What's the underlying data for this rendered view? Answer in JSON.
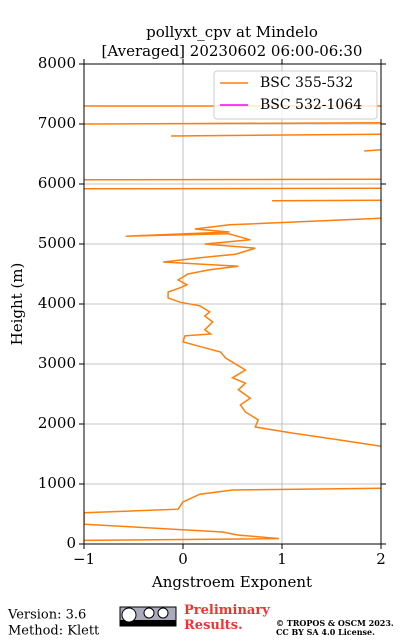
{
  "chart_data": {
    "type": "line",
    "title": "pollyxt_cpv at Mindelo",
    "subtitle": "[Averaged] 20230602 06:00-06:30",
    "x_label": "Angstroem Exponent",
    "y_label": "Height (m)",
    "xlim": [
      -1,
      2
    ],
    "ylim": [
      0,
      8000
    ],
    "xticks": [
      {
        "value": -1,
        "label": "−1"
      },
      0,
      1,
      2
    ],
    "yticks": [
      0,
      1000,
      2000,
      3000,
      4000,
      5000,
      6000,
      7000,
      8000
    ],
    "grid": true,
    "legend": "upper right",
    "series": [
      {
        "name": "BSC 355-532",
        "color": "#ff7f0e",
        "x": [
          -1,
          0.97,
          0.55,
          0.4,
          -1,
          -1,
          -0.05,
          0,
          0.17,
          0.5,
          2,
          null,
          2,
          1.6,
          1.1,
          0.73,
          0.76,
          0.63,
          0.58,
          0.68,
          0.56,
          0.63,
          0.5,
          0.63,
          0.43,
          0.38,
          0.22,
          0,
          0.02,
          0.28,
          0.22,
          0.3,
          0.22,
          0.27,
          0.17,
          -0.03,
          -0.15,
          -0.15,
          -0.03,
          0.04,
          -0.05,
          0.05,
          0.27,
          0.56,
          -0.2,
          0.22,
          0.53,
          0.73,
          0.22,
          0.68,
          0.46,
          -0.58,
          0.47,
          0.12,
          0.47,
          1.18,
          2,
          null,
          0.9,
          2,
          null,
          -1,
          2,
          null,
          -1,
          2,
          null,
          1.83,
          2,
          null,
          -0.12,
          2,
          null,
          -1,
          2,
          null,
          -1,
          2
        ],
        "values": [
          60,
          90,
          150,
          200,
          330,
          520,
          580,
          700,
          830,
          900,
          930,
          null,
          1630,
          1730,
          1850,
          1950,
          2070,
          2200,
          2320,
          2430,
          2570,
          2680,
          2770,
          2900,
          3100,
          3200,
          3270,
          3370,
          3470,
          3500,
          3570,
          3700,
          3800,
          3870,
          3970,
          4030,
          4100,
          4200,
          4270,
          4320,
          4400,
          4500,
          4570,
          4630,
          4700,
          4780,
          4830,
          4930,
          5000,
          5070,
          5170,
          5130,
          5200,
          5250,
          5320,
          5370,
          5430,
          null,
          5720,
          5730,
          null,
          5920,
          5930,
          null,
          6070,
          6080,
          null,
          6550,
          6570,
          null,
          6800,
          6830,
          null,
          7000,
          7020,
          null,
          7300,
          7300
        ]
      },
      {
        "name": "BSC 532-1064",
        "color": "#ff00ff",
        "x": [],
        "values": []
      }
    ]
  },
  "footer": {
    "version": "Version: 3.6",
    "method": "Method: Klett",
    "notice": "Preliminary Results.",
    "copyright": "© TROPOS & OSCM 2023.",
    "license": "CC BY SA 4.0 License."
  }
}
